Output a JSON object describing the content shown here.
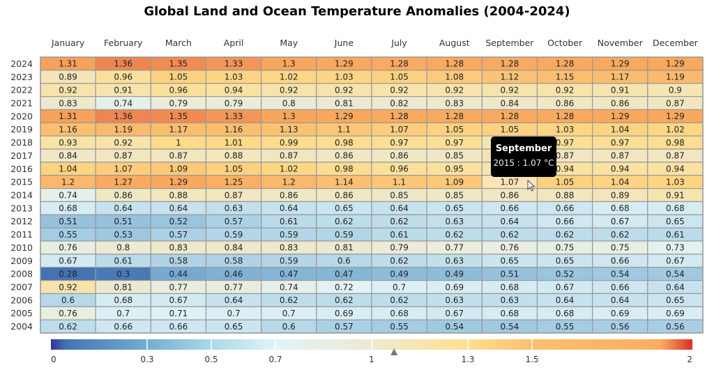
{
  "chart_data": {
    "type": "heatmap",
    "title": "Global Land and Ocean Temperature Anomalies (2004-2024)",
    "x_categories": [
      "January",
      "February",
      "March",
      "April",
      "May",
      "June",
      "July",
      "August",
      "September",
      "October",
      "November",
      "December"
    ],
    "y_categories": [
      "2024",
      "2023",
      "2022",
      "2021",
      "2020",
      "2019",
      "2018",
      "2017",
      "2016",
      "2015",
      "2014",
      "2013",
      "2012",
      "2011",
      "2010",
      "2009",
      "2008",
      "2007",
      "2006",
      "2005",
      "2004"
    ],
    "values": [
      [
        1.31,
        1.36,
        1.35,
        1.33,
        1.3,
        1.29,
        1.28,
        1.28,
        1.28,
        1.28,
        1.29,
        1.29
      ],
      [
        0.89,
        0.96,
        1.05,
        1.03,
        1.02,
        1.03,
        1.05,
        1.08,
        1.12,
        1.15,
        1.17,
        1.19
      ],
      [
        0.92,
        0.91,
        0.96,
        0.94,
        0.92,
        0.92,
        0.92,
        0.92,
        0.92,
        0.92,
        0.91,
        0.9
      ],
      [
        0.83,
        0.74,
        0.79,
        0.79,
        0.8,
        0.81,
        0.82,
        0.83,
        0.84,
        0.86,
        0.86,
        0.87
      ],
      [
        1.31,
        1.36,
        1.35,
        1.33,
        1.3,
        1.29,
        1.28,
        1.28,
        1.28,
        1.28,
        1.29,
        1.29
      ],
      [
        1.16,
        1.19,
        1.17,
        1.16,
        1.13,
        1.1,
        1.07,
        1.05,
        1.05,
        1.03,
        1.04,
        1.02
      ],
      [
        0.93,
        0.92,
        1,
        1.01,
        0.99,
        0.98,
        0.97,
        0.97,
        null,
        0.97,
        0.97,
        0.98
      ],
      [
        0.84,
        0.87,
        0.87,
        0.88,
        0.87,
        0.86,
        0.86,
        0.85,
        null,
        0.87,
        0.87,
        0.87
      ],
      [
        1.04,
        1.07,
        1.09,
        1.05,
        1.02,
        0.98,
        0.96,
        0.95,
        null,
        0.94,
        0.94,
        0.94
      ],
      [
        1.2,
        1.27,
        1.29,
        1.25,
        1.2,
        1.14,
        1.1,
        1.09,
        1.07,
        1.05,
        1.04,
        1.03
      ],
      [
        0.74,
        0.86,
        0.88,
        0.87,
        0.86,
        0.86,
        0.85,
        0.85,
        0.86,
        0.88,
        0.89,
        0.91
      ],
      [
        0.68,
        0.64,
        0.64,
        0.63,
        0.64,
        0.65,
        0.64,
        0.65,
        0.66,
        0.66,
        0.68,
        0.68
      ],
      [
        0.51,
        0.51,
        0.52,
        0.57,
        0.61,
        0.62,
        0.62,
        0.63,
        0.64,
        0.66,
        0.67,
        0.65
      ],
      [
        0.55,
        0.53,
        0.57,
        0.59,
        0.59,
        0.59,
        0.61,
        0.62,
        0.62,
        0.62,
        0.62,
        0.61
      ],
      [
        0.76,
        0.8,
        0.83,
        0.84,
        0.83,
        0.81,
        0.79,
        0.77,
        0.76,
        0.75,
        0.75,
        0.73
      ],
      [
        0.67,
        0.61,
        0.58,
        0.58,
        0.59,
        0.6,
        0.62,
        0.63,
        0.65,
        0.65,
        0.66,
        0.67
      ],
      [
        0.28,
        0.3,
        0.44,
        0.46,
        0.47,
        0.47,
        0.49,
        0.49,
        0.51,
        0.52,
        0.54,
        0.54
      ],
      [
        0.92,
        0.81,
        0.77,
        0.77,
        0.74,
        0.72,
        0.7,
        0.69,
        0.68,
        0.67,
        0.66,
        0.64
      ],
      [
        0.6,
        0.68,
        0.67,
        0.64,
        0.62,
        0.62,
        0.62,
        0.63,
        0.63,
        0.64,
        0.64,
        0.65
      ],
      [
        0.76,
        0.7,
        0.71,
        0.7,
        0.7,
        0.69,
        0.68,
        0.67,
        0.68,
        0.68,
        0.69,
        0.69
      ],
      [
        0.62,
        0.66,
        0.66,
        0.65,
        0.6,
        0.57,
        0.55,
        0.54,
        0.54,
        0.55,
        0.56,
        0.56
      ]
    ],
    "legend": {
      "position": "bottom",
      "range": [
        0,
        2
      ],
      "tick_labels": [
        "0",
        "0.3",
        "0.5",
        "0.7",
        "1",
        "1.3",
        "1.5",
        "2"
      ],
      "pointer_value": 1.07,
      "colors": [
        "#313695",
        "#4575b4",
        "#74add1",
        "#abd9e9",
        "#e0f3f8",
        "#eeead0",
        "#fee090",
        "#fdbf71",
        "#fdae61",
        "#d73027"
      ]
    },
    "highlighted": {
      "month": "September",
      "year": "2015",
      "color": "#fde3b5"
    },
    "tooltip": {
      "title": "September",
      "body": "2015 : 1.07 °C"
    }
  }
}
